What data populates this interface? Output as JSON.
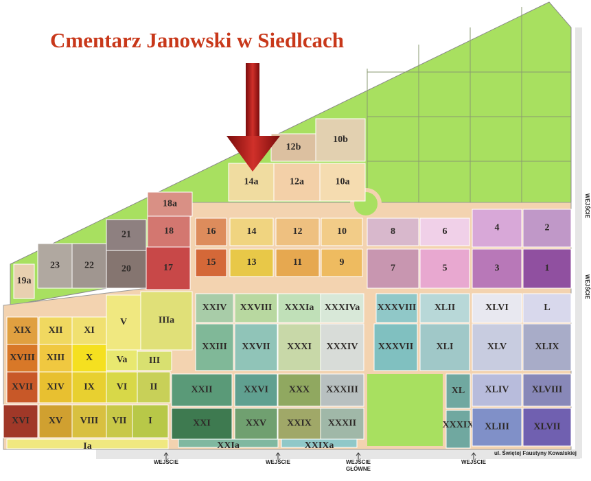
{
  "title": "Cmentarz Janowski w Siedlcach",
  "sections": [
    {
      "label": "10b"
    },
    {
      "label": "12b"
    },
    {
      "label": "14a"
    },
    {
      "label": "12a"
    },
    {
      "label": "10a"
    },
    {
      "label": "18a"
    },
    {
      "label": "18"
    },
    {
      "label": "17"
    },
    {
      "label": "21"
    },
    {
      "label": "20"
    },
    {
      "label": "22"
    },
    {
      "label": "23"
    },
    {
      "label": "19a"
    },
    {
      "label": "16"
    },
    {
      "label": "14"
    },
    {
      "label": "12"
    },
    {
      "label": "10"
    },
    {
      "label": "15"
    },
    {
      "label": "13"
    },
    {
      "label": "11"
    },
    {
      "label": "9"
    },
    {
      "label": "8"
    },
    {
      "label": "6"
    },
    {
      "label": "4"
    },
    {
      "label": "2"
    },
    {
      "label": "7"
    },
    {
      "label": "5"
    },
    {
      "label": "3"
    },
    {
      "label": "1"
    },
    {
      "label": "XXIV"
    },
    {
      "label": "XXVIII"
    },
    {
      "label": "XXXIa"
    },
    {
      "label": "XXXIVa"
    },
    {
      "label": "XXXVIII"
    },
    {
      "label": "XLII"
    },
    {
      "label": "XLVI"
    },
    {
      "label": "L"
    },
    {
      "label": "XXIII"
    },
    {
      "label": "XXVII"
    },
    {
      "label": "XXXI"
    },
    {
      "label": "XXXIV"
    },
    {
      "label": "XXXVII"
    },
    {
      "label": "XLI"
    },
    {
      "label": "XLV"
    },
    {
      "label": "XLIX"
    },
    {
      "label": "XXII"
    },
    {
      "label": "XXVI"
    },
    {
      "label": "XXX"
    },
    {
      "label": "XXXIII"
    },
    {
      "label": "XL"
    },
    {
      "label": "XLIV"
    },
    {
      "label": "XLVIII"
    },
    {
      "label": "XXI"
    },
    {
      "label": "XXV"
    },
    {
      "label": "XXIX"
    },
    {
      "label": "XXXII"
    },
    {
      "label": "XXXIX"
    },
    {
      "label": "XLIII"
    },
    {
      "label": "XLVII"
    },
    {
      "label": "XXIa"
    },
    {
      "label": "XXIXa"
    },
    {
      "label": "XIX"
    },
    {
      "label": "XII"
    },
    {
      "label": "XI"
    },
    {
      "label": "V"
    },
    {
      "label": "IIIa"
    },
    {
      "label": "XVIII"
    },
    {
      "label": "XIII"
    },
    {
      "label": "X"
    },
    {
      "label": "Va"
    },
    {
      "label": "III"
    },
    {
      "label": "XVII"
    },
    {
      "label": "XIV"
    },
    {
      "label": "IX"
    },
    {
      "label": "VI"
    },
    {
      "label": "II"
    },
    {
      "label": "XVI"
    },
    {
      "label": "XV"
    },
    {
      "label": "VIII"
    },
    {
      "label": "VII"
    },
    {
      "label": "I"
    },
    {
      "label": "Ia"
    }
  ],
  "entrances": [
    {
      "label": "WEJŚCIE"
    },
    {
      "label": "WEJŚCIE"
    },
    {
      "label": "WEJŚCIE",
      "sublabel": "GŁÓWNE"
    },
    {
      "label": "WEJŚCIE"
    },
    {
      "label": "WEJŚCIE"
    },
    {
      "label": "WEJŚCIE"
    }
  ],
  "street": "ul. Świętej Faustyny Kowalskiej"
}
